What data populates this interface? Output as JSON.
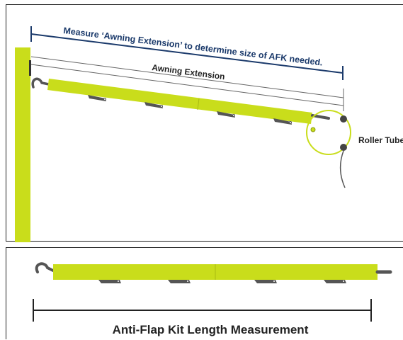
{
  "diagram": {
    "measure_label": "Measure ‘Awning Extension’ to determine size of AFK needed.",
    "extension_label": "Awning Extension",
    "roller_label": "Roller Tube",
    "kit_label": "Anti-Flap Kit Length Measurement"
  },
  "colors": {
    "lime": "#c9dd1b",
    "lime_dark": "#a9bb12",
    "navy": "#1b3a6b",
    "dark": "#333333"
  }
}
